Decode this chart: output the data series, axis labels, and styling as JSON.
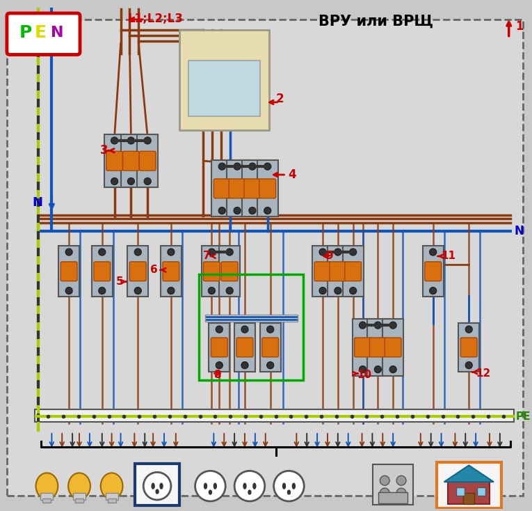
{
  "bg_color": "#c8c8c8",
  "panel_bg": "#d8d8d8",
  "title": "ВРУ или ВРЩ",
  "pen_color_P": "#00bb00",
  "pen_color_E": "#dddd00",
  "pen_color_N": "#aa00aa",
  "pen_box_color": "#cc0000",
  "L123_label": "L1;L2;L3",
  "L123_color": "#cc0000",
  "N_label": "N",
  "N_color": "#0000cc",
  "PE_label": "PE",
  "PE_color": "#228800",
  "arrow_color": "#cc0000",
  "wire_brown": "#8B3A10",
  "wire_blue": "#1055bb",
  "wire_yg": "#aacc00",
  "wire_dark": "#222222",
  "breaker_body": "#a8b5be",
  "breaker_orange": "#d97010",
  "green_box_color": "#00aa00",
  "blue_box_color": "#1a3a70",
  "orange_box_color": "#e07820",
  "number_color": "#cc0000",
  "white": "#ffffff",
  "meter_outer": "#e8ddb0",
  "meter_screen": "#c0d8e0"
}
